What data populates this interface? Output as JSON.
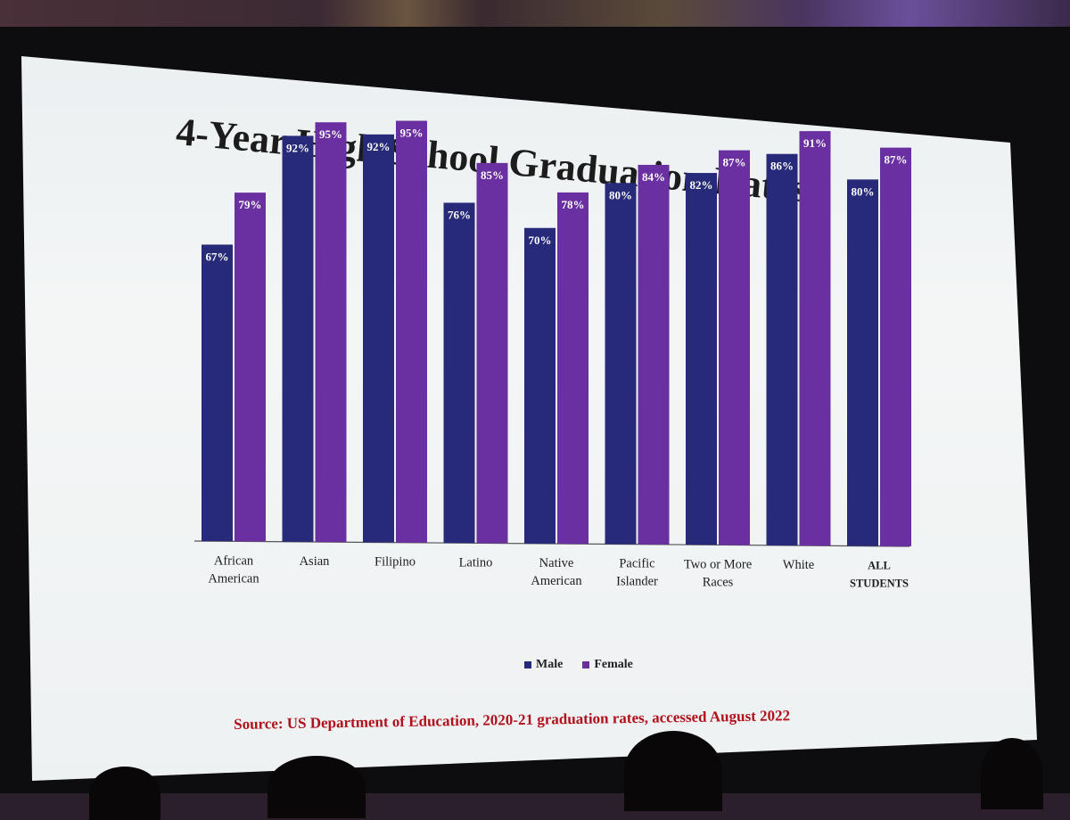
{
  "title": "4-Year High School Graduation Rates",
  "source": "Source: US Department of Education, 2020-21 graduation rates, accessed August 2022",
  "colors": {
    "male": "#262a78",
    "female": "#6a2fa0",
    "label": "#ffffff",
    "axis": "#555555",
    "title": "#1c1c1c",
    "source": "#b0121d"
  },
  "chart_data": {
    "type": "bar",
    "title": "4-Year High School Graduation Rates",
    "categories": [
      [
        "African",
        "American"
      ],
      [
        "Asian"
      ],
      [
        "Filipino"
      ],
      [
        "Latino"
      ],
      [
        "Native",
        "American"
      ],
      [
        "Pacific",
        "Islander"
      ],
      [
        "Two or More",
        "Races"
      ],
      [
        "White"
      ],
      [
        "ALL",
        "STUDENTS"
      ]
    ],
    "series": [
      {
        "name": "Male",
        "values": [
          67,
          92,
          92,
          76,
          70,
          80,
          82,
          86,
          80
        ],
        "labels": [
          "67%",
          "92%",
          "92%",
          "76%",
          "70%",
          "80%",
          "82%",
          "86%",
          "80%"
        ]
      },
      {
        "name": "Female",
        "values": [
          79,
          95,
          95,
          85,
          78,
          84,
          87,
          91,
          87
        ],
        "labels": [
          "79%",
          "95%",
          "95%",
          "85%",
          "78%",
          "84%",
          "87%",
          "91%",
          "87%"
        ]
      }
    ],
    "ylim": [
      0,
      100
    ],
    "legend_position": "bottom",
    "grid": false
  }
}
